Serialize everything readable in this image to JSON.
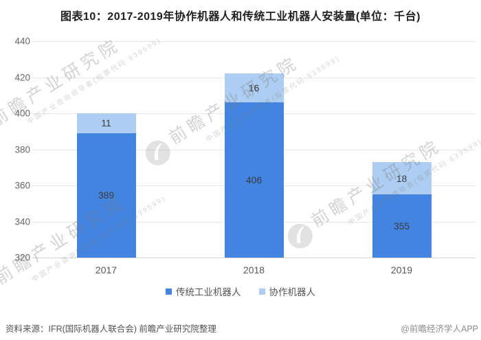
{
  "title": "图表10：2017-2019年协作机器人和传统工业机器人安装量(单位：千台)",
  "chart_data": {
    "type": "bar",
    "stacked": true,
    "categories": [
      "2017",
      "2018",
      "2019"
    ],
    "series": [
      {
        "name": "传统工业机器人",
        "color": "#4384e1",
        "values": [
          389,
          406,
          355
        ]
      },
      {
        "name": "协作机器人",
        "color": "#aecdf2",
        "values": [
          11,
          16,
          18
        ]
      }
    ],
    "title": "图表10：2017-2019年协作机器人和传统工业机器人安装量(单位：千台)",
    "xlabel": "",
    "ylabel": "",
    "ylim": [
      320,
      440
    ],
    "yticks": [
      320,
      340,
      360,
      380,
      400,
      420,
      440
    ],
    "grid": true,
    "legend_position": "bottom",
    "colors": {
      "grid": "#e8e8e8",
      "axis_line": "#d2d2d2",
      "tick_label": "#666666",
      "value_label": "#3d3d3d"
    }
  },
  "watermark": {
    "brand": "前瞻产业研究院",
    "tagline": "中国产业咨询领导者(股票代码:839599)"
  },
  "footer": {
    "source": "资料来源：IFR(国际机器人联合会) 前瞻产业研究院整理",
    "credit": "@前瞻经济学人APP"
  }
}
